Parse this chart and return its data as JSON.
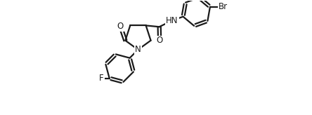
{
  "background_color": "#ffffff",
  "line_color": "#1a1a1a",
  "line_width": 1.6,
  "font_size": 8.5,
  "figsize": [
    4.44,
    1.64
  ],
  "dpi": 100,
  "xlim": [
    0.0,
    10.5
  ],
  "ylim": [
    0.5,
    7.5
  ]
}
